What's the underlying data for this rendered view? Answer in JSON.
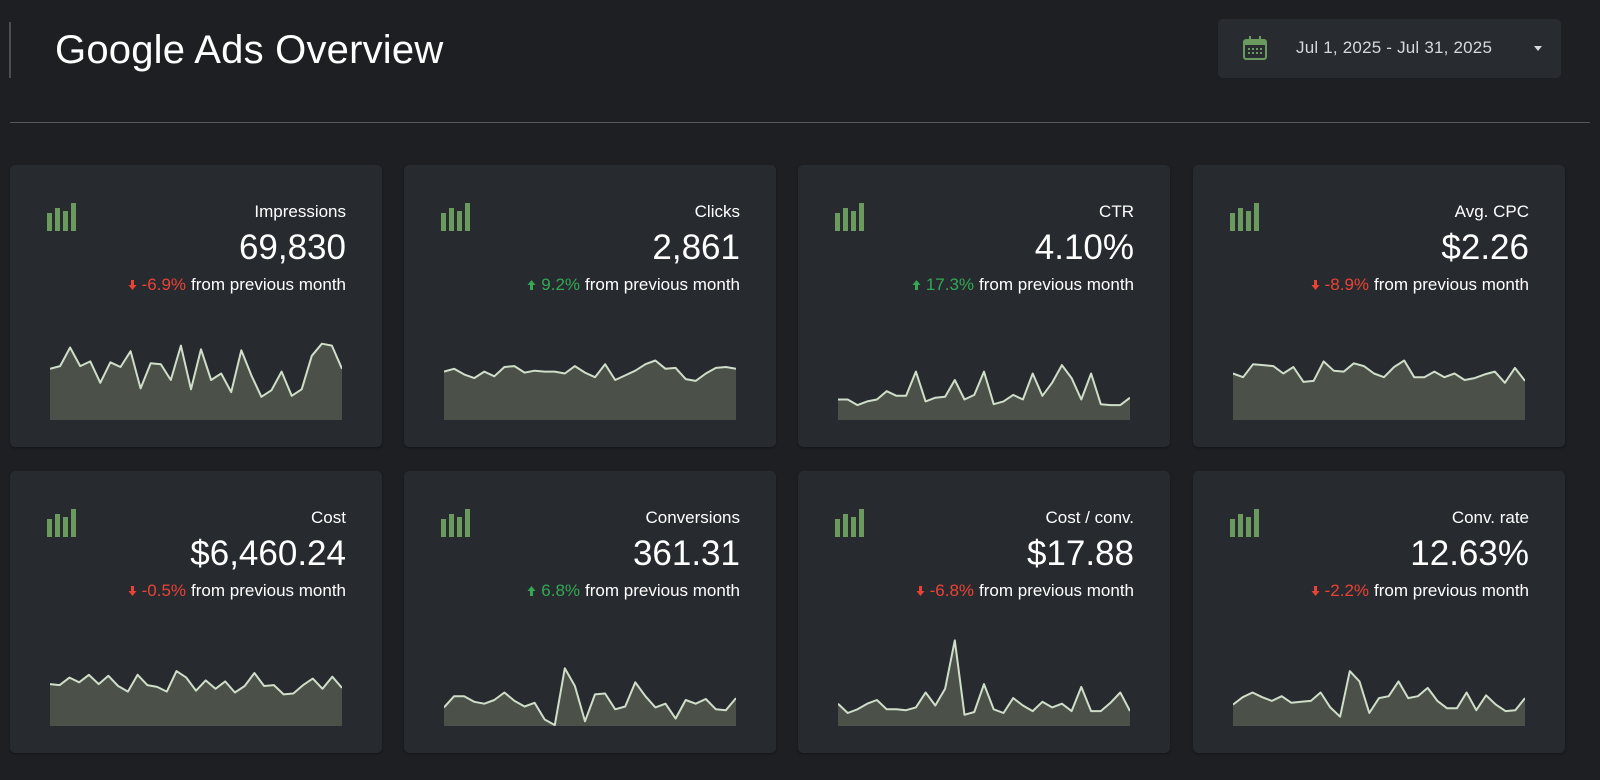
{
  "header": {
    "title": "Google Ads Overview",
    "date_range": "Jul 1, 2025 - Jul 31, 2025",
    "calendar_icon": "calendar-icon",
    "dropdown_icon": "caret-down-icon"
  },
  "colors": {
    "background": "#1d1f22",
    "card": "#272a2f",
    "accent_green": "#6b9a5e",
    "negative": "#ea4335",
    "positive": "#34a853",
    "spark_line": "#cfdec8",
    "spark_fill": "#4b5049"
  },
  "delta_suffix": "from previous month",
  "cards": [
    {
      "label": "Impressions",
      "value": "69,830",
      "delta": "-6.9%",
      "direction": "down",
      "trend": [
        55,
        58,
        78,
        58,
        63,
        40,
        62,
        57,
        74,
        34,
        61,
        60,
        43,
        80,
        33,
        76,
        43,
        50,
        30,
        75,
        48,
        25,
        32,
        52,
        26,
        33,
        69,
        82,
        80,
        55
      ]
    },
    {
      "label": "Clicks",
      "value": "2,861",
      "delta": "9.2%",
      "direction": "up",
      "trend": [
        52,
        55,
        49,
        45,
        52,
        47,
        57,
        58,
        51,
        53,
        52,
        52,
        50,
        58,
        51,
        46,
        60,
        43,
        48,
        53,
        60,
        64,
        55,
        56,
        44,
        42,
        50,
        56,
        57,
        55
      ]
    },
    {
      "label": "CTR",
      "value": "4.10%",
      "delta": "17.3%",
      "direction": "up",
      "trend": [
        22,
        22,
        16,
        20,
        22,
        31,
        26,
        26,
        52,
        20,
        24,
        25,
        43,
        22,
        27,
        52,
        17,
        20,
        27,
        22,
        50,
        26,
        40,
        59,
        45,
        22,
        50,
        17,
        16,
        16,
        24
      ]
    },
    {
      "label": "Avg. CPC",
      "value": "$2.26",
      "delta": "-8.9%",
      "direction": "down",
      "trend": [
        50,
        46,
        60,
        59,
        58,
        50,
        57,
        41,
        42,
        63,
        53,
        52,
        61,
        58,
        50,
        46,
        57,
        64,
        46,
        46,
        52,
        46,
        50,
        43,
        45,
        49,
        52,
        40,
        56,
        42
      ]
    },
    {
      "label": "Cost",
      "value": "$6,460.24",
      "delta": "-0.5%",
      "direction": "down",
      "trend": [
        45,
        44,
        52,
        47,
        55,
        45,
        54,
        43,
        37,
        55,
        44,
        42,
        37,
        59,
        52,
        38,
        49,
        40,
        48,
        36,
        43,
        57,
        43,
        44,
        34,
        35,
        44,
        51,
        40,
        53,
        41
      ]
    },
    {
      "label": "Conversions",
      "value": "361.31",
      "delta": "6.8%",
      "direction": "up",
      "trend": [
        20,
        32,
        32,
        26,
        24,
        28,
        36,
        27,
        21,
        25,
        7,
        1,
        62,
        43,
        5,
        34,
        35,
        18,
        21,
        47,
        32,
        20,
        24,
        8,
        28,
        24,
        29,
        18,
        17,
        30
      ]
    },
    {
      "label": "Cost / conv.",
      "value": "$17.88",
      "delta": "-6.8%",
      "direction": "down",
      "trend": [
        24,
        14,
        18,
        24,
        28,
        18,
        18,
        17,
        20,
        36,
        22,
        40,
        92,
        12,
        15,
        45,
        18,
        14,
        30,
        22,
        16,
        26,
        20,
        24,
        16,
        42,
        16,
        16,
        25,
        36,
        16
      ]
    },
    {
      "label": "Conv. rate",
      "value": "12.63%",
      "delta": "-2.2%",
      "direction": "down",
      "trend": [
        23,
        31,
        36,
        31,
        27,
        32,
        25,
        26,
        27,
        36,
        20,
        10,
        59,
        48,
        14,
        30,
        32,
        48,
        30,
        32,
        41,
        27,
        19,
        19,
        36,
        17,
        33,
        23,
        16,
        17,
        30
      ]
    }
  ]
}
